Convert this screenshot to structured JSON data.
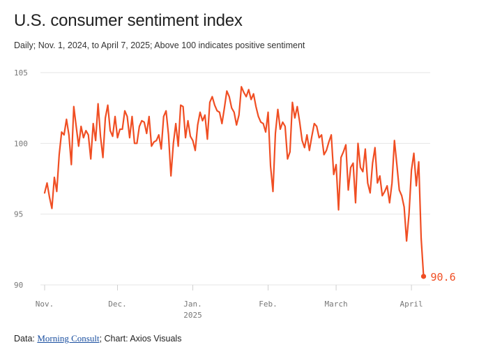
{
  "title": "U.S. consumer sentiment index",
  "subtitle": "Daily; Nov. 1, 2024, to April 7, 2025; Above 100 indicates positive sentiment",
  "source": {
    "prefix": "Data: ",
    "link_text": "Morning Consult",
    "suffix": "; Chart: Axios Visuals"
  },
  "colors": {
    "line": "#f04e23",
    "grid": "#e6e6e6",
    "tick": "#777777"
  },
  "chart_data": {
    "type": "line",
    "ylim": [
      90,
      105
    ],
    "yticks": [
      90,
      95,
      100,
      105
    ],
    "grid": true,
    "xlim": [
      "2024-11-01",
      "2025-04-07"
    ],
    "xticks": [
      {
        "date": "2024-11-01",
        "label": "Nov.",
        "sublabel": ""
      },
      {
        "date": "2024-12-01",
        "label": "Dec.",
        "sublabel": ""
      },
      {
        "date": "2025-01-01",
        "label": "Jan.",
        "sublabel": "2025"
      },
      {
        "date": "2025-02-01",
        "label": "Feb.",
        "sublabel": ""
      },
      {
        "date": "2025-03-01",
        "label": "March",
        "sublabel": ""
      },
      {
        "date": "2025-04-01",
        "label": "April",
        "sublabel": ""
      }
    ],
    "end_label": "90.6",
    "series": [
      {
        "x_start": "2024-11-01",
        "x_step_days": 1,
        "values": [
          96.5,
          97.2,
          96.2,
          95.4,
          97.6,
          96.6,
          99.2,
          100.8,
          100.6,
          101.7,
          100.6,
          98.5,
          102.6,
          101.2,
          99.8,
          101.2,
          100.4,
          100.9,
          100.6,
          98.9,
          101.4,
          100.2,
          102.8,
          100.5,
          99.0,
          101.8,
          102.7,
          100.9,
          100.5,
          101.9,
          100.4,
          101.0,
          101.0,
          102.3,
          101.9,
          100.4,
          101.9,
          100.0,
          100.0,
          101.2,
          101.6,
          101.5,
          100.7,
          101.9,
          99.8,
          100.1,
          100.2,
          100.6,
          99.6,
          101.9,
          102.3,
          100.6,
          97.7,
          100.0,
          101.4,
          99.8,
          102.7,
          102.6,
          100.4,
          101.6,
          100.5,
          100.2,
          99.5,
          101.3,
          102.2,
          101.6,
          102.0,
          100.3,
          102.9,
          103.3,
          102.7,
          102.3,
          102.2,
          101.4,
          102.5,
          103.7,
          103.3,
          102.5,
          102.2,
          101.3,
          102.0,
          104.0,
          103.6,
          103.3,
          103.8,
          103.1,
          103.5,
          102.6,
          101.9,
          101.5,
          101.4,
          100.8,
          102.2,
          98.4,
          96.6,
          100.7,
          102.4,
          101.0,
          101.5,
          101.2,
          98.9,
          99.4,
          102.9,
          101.8,
          102.6,
          101.5,
          100.2,
          99.7,
          100.6,
          99.5,
          100.5,
          101.4,
          101.2,
          100.4,
          100.6,
          99.2,
          99.5,
          100.1,
          100.6,
          97.8,
          98.5,
          95.3,
          99.0,
          99.4,
          99.9,
          96.7,
          98.3,
          98.6,
          95.8,
          100.0,
          98.3,
          98.0,
          99.6,
          97.2,
          96.5,
          98.6,
          99.7,
          97.2,
          97.7,
          96.3,
          96.6,
          97.0,
          95.8,
          97.2,
          100.2,
          98.5,
          96.7,
          96.3,
          95.5,
          93.1,
          95.0,
          98.1,
          99.3,
          97.0,
          98.7,
          93.3,
          90.6
        ]
      }
    ]
  }
}
